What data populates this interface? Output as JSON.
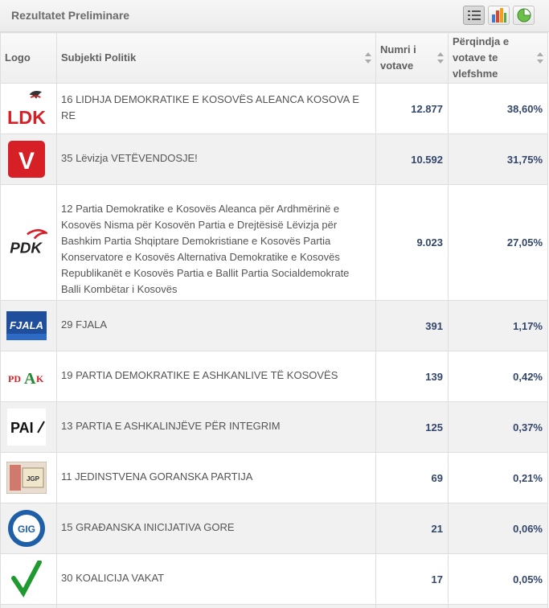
{
  "panel": {
    "title": "Rezultatet Preliminare",
    "view_buttons": [
      {
        "name": "list-view-icon",
        "active": true
      },
      {
        "name": "bar-chart-icon",
        "active": false
      },
      {
        "name": "pie-chart-icon",
        "active": false
      }
    ]
  },
  "table": {
    "headers": {
      "logo": "Logo",
      "subject": "Subjekti Politik",
      "votes": "Numri i votave",
      "percent": "Përqindja e votave te vlefshme"
    },
    "rows": [
      {
        "logo": "ldk-logo",
        "logo_text": "LDK",
        "name": "16 LIDHJA DEMOKRATIKE E KOSOVËS ALEANCA KOSOVA E RE",
        "votes": "12.877",
        "percent": "38,60%"
      },
      {
        "logo": "vetevendosje-logo",
        "logo_text": "V",
        "name": "35 Lëvizja VETËVENDOSJE!",
        "votes": "10.592",
        "percent": "31,75%"
      },
      {
        "logo": "pdk-logo",
        "logo_text": "PDK",
        "name": "12 Partia Demokratike e Kosovës Aleanca për Ardhmërinë e Kosovës Nisma për Kosovën Partia e Drejtësisë Lëvizja për Bashkim Partia Shqiptare Demokristiane e Kosovës Partia Konservatore e Kosovës Alternativa Demokratike e Kosovës Republikanët e Kosovës Partia e Ballit Partia Socialdemokrate Balli Kombëtar i Kosovës",
        "votes": "9.023",
        "percent": "27,05%"
      },
      {
        "logo": "fjala-logo",
        "logo_text": "FJALA",
        "name": "29 FJALA",
        "votes": "391",
        "percent": "1,17%"
      },
      {
        "logo": "pdak-logo",
        "logo_text": "PDAK",
        "name": "19 PARTIA DEMOKRATIKE E ASHKANLIVE TË KOSOVËS",
        "votes": "139",
        "percent": "0,42%"
      },
      {
        "logo": "pai-logo",
        "logo_text": "PAI",
        "name": "13 PARTIA E ASHKALINJËVE PËR INTEGRIM",
        "votes": "125",
        "percent": "0,37%"
      },
      {
        "logo": "jgp-logo",
        "logo_text": "JGP",
        "name": "11 JEDINSTVENA GORANSKA PARTIJA",
        "votes": "69",
        "percent": "0,21%"
      },
      {
        "logo": "gig-logo",
        "logo_text": "GIG",
        "name": "15 GRAĐANSKA INICIJATIVA GORE",
        "votes": "21",
        "percent": "0,06%"
      },
      {
        "logo": "vakat-logo",
        "logo_text": "",
        "name": "30 KOALICIJA VAKAT",
        "votes": "17",
        "percent": "0,05%"
      }
    ]
  }
}
